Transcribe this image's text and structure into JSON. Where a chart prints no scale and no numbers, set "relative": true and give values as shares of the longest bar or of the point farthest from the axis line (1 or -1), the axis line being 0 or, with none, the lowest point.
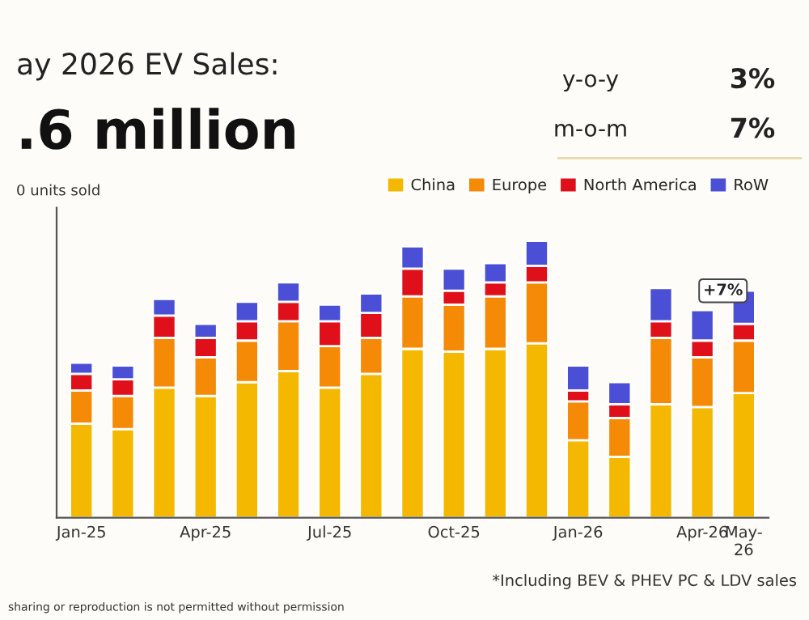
{
  "chart_data": {
    "type": "bar",
    "title": "ay 2026 EV Sales:",
    "subtitle": ".6 million",
    "ylabel": "0 units sold",
    "categories": [
      "Jan-25",
      null,
      null,
      "Apr-25",
      null,
      null,
      "Jul-25",
      null,
      null,
      "Oct-25",
      null,
      null,
      "Jan-26",
      null,
      null,
      "Apr-26",
      "May-26"
    ],
    "relative": true,
    "stacked": true,
    "legend": "top right",
    "grid": false,
    "series": [
      {
        "name": "China",
        "color": "#f5b800",
        "values": [
          0.34,
          0.32,
          0.47,
          0.44,
          0.49,
          0.53,
          0.47,
          0.52,
          0.61,
          0.6,
          0.61,
          0.63,
          0.28,
          0.22,
          0.41,
          0.4,
          0.45
        ]
      },
      {
        "name": "Europe",
        "color": "#f58a07",
        "values": [
          0.12,
          0.12,
          0.18,
          0.14,
          0.15,
          0.18,
          0.15,
          0.13,
          0.19,
          0.17,
          0.19,
          0.22,
          0.14,
          0.14,
          0.24,
          0.18,
          0.19
        ]
      },
      {
        "name": "North America",
        "color": "#e0101a",
        "values": [
          0.06,
          0.06,
          0.08,
          0.07,
          0.07,
          0.07,
          0.09,
          0.09,
          0.1,
          0.05,
          0.05,
          0.06,
          0.04,
          0.05,
          0.06,
          0.06,
          0.06
        ]
      },
      {
        "name": "RoW",
        "color": "#4a4fd6",
        "values": [
          0.04,
          0.05,
          0.06,
          0.05,
          0.07,
          0.07,
          0.06,
          0.07,
          0.08,
          0.08,
          0.07,
          0.09,
          0.09,
          0.08,
          0.12,
          0.11,
          0.12
        ]
      }
    ],
    "annotations": [
      "y-o-y",
      "3%",
      "m-o-m",
      "7%",
      "*Including BEV & PHEV PC & LDV sales",
      "sharing or reproduction is not permitted without permission",
      {
        "text": "+7%",
        "x": "May-26",
        "y": 0.82
      }
    ]
  }
}
